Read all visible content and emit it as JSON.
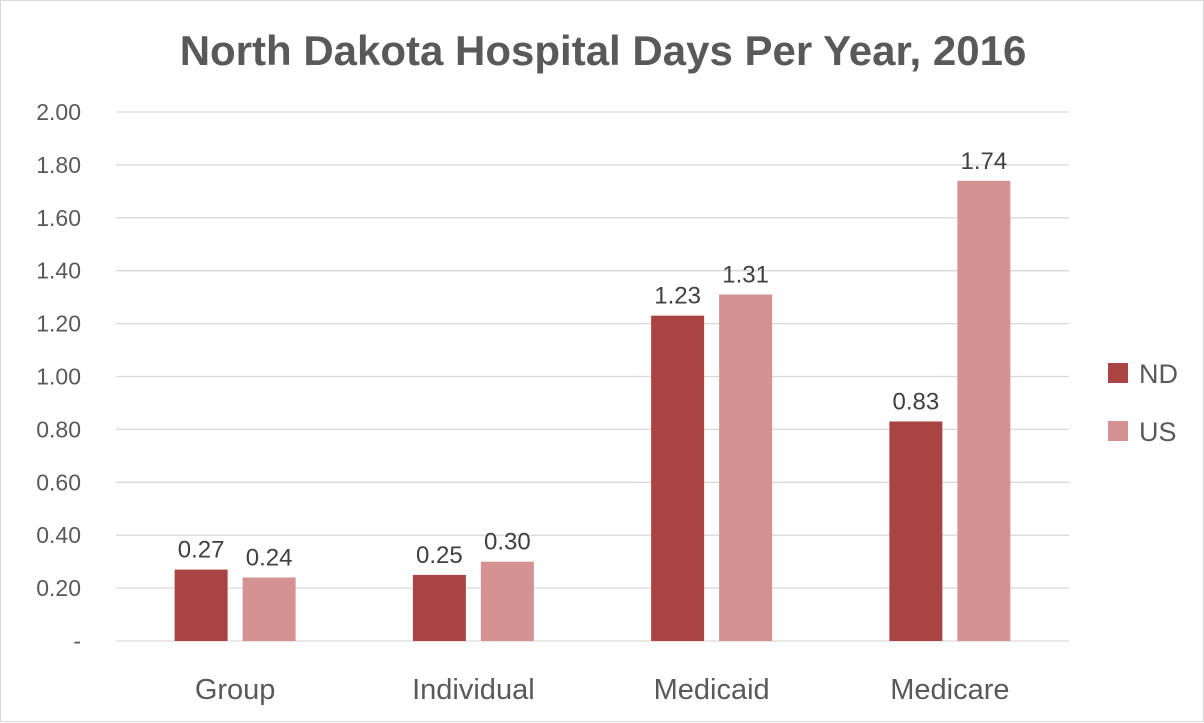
{
  "chart_data": {
    "type": "bar",
    "title": "North Dakota Hospital Days Per Year, 2016",
    "categories": [
      "Group",
      "Individual",
      "Medicaid",
      "Medicare"
    ],
    "series": [
      {
        "name": "ND",
        "color": "#a94442",
        "values": [
          0.27,
          0.25,
          1.23,
          0.83
        ],
        "labels": [
          "0.27",
          "0.25",
          "1.23",
          "0.83"
        ]
      },
      {
        "name": "US",
        "color": "#d49292",
        "values": [
          0.24,
          0.3,
          1.31,
          1.74
        ],
        "labels": [
          "0.24",
          "0.30",
          "1.31",
          "1.74"
        ]
      }
    ],
    "ylim": [
      0,
      2.0
    ],
    "yticks": [
      0,
      0.2,
      0.4,
      0.6,
      0.8,
      1.0,
      1.2,
      1.4,
      1.6,
      1.8,
      2.0
    ],
    "ytick_labels": [
      "-",
      "0.20",
      "0.40",
      "0.60",
      "0.80",
      "1.00",
      "1.20",
      "1.40",
      "1.60",
      "1.80",
      "2.00"
    ],
    "grid": true,
    "legend": "right"
  }
}
